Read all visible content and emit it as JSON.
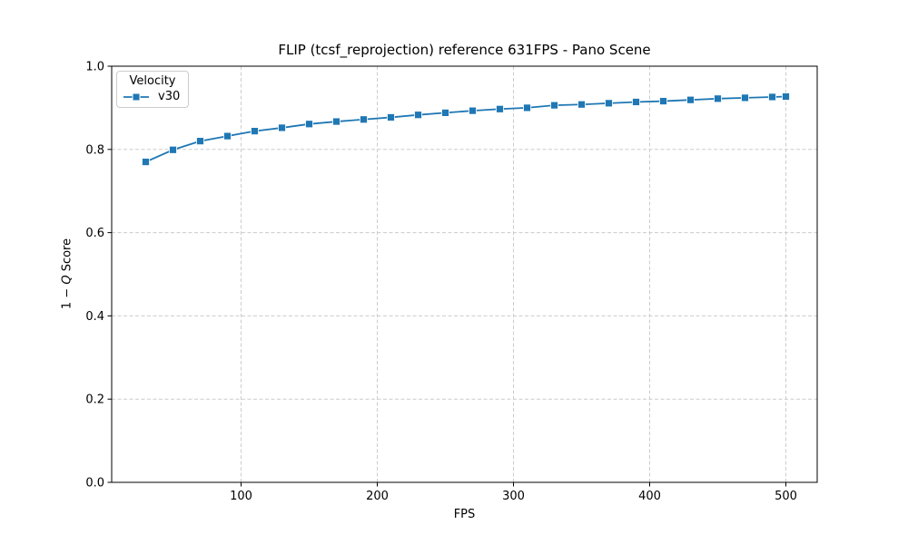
{
  "chart_data": {
    "type": "line",
    "title": "FLIP (tcsf_reprojection) reference 631FPS - Pano Scene",
    "xlabel": "FPS",
    "ylabel": "1 − Q Score",
    "ylabel_parts": {
      "prefix": "1 − ",
      "math": "Q",
      "suffix": " Score"
    },
    "xlim": [
      5,
      523
    ],
    "ylim": [
      0.0,
      1.0
    ],
    "xticks": [
      100,
      200,
      300,
      400,
      500
    ],
    "xtick_labels": [
      "100",
      "200",
      "300",
      "400",
      "500"
    ],
    "yticks": [
      0.0,
      0.2,
      0.4,
      0.6,
      0.8,
      1.0
    ],
    "ytick_labels": [
      "0.0",
      "0.2",
      "0.4",
      "0.6",
      "0.8",
      "1.0"
    ],
    "grid": true,
    "legend": {
      "title": "Velocity",
      "position": "upper left",
      "entries": [
        {
          "label": "v30",
          "color": "#1f77b4",
          "marker": "square"
        }
      ]
    },
    "series": [
      {
        "name": "v30",
        "color": "#1f77b4",
        "marker": "square",
        "x": [
          30,
          50,
          70,
          90,
          110,
          130,
          150,
          170,
          190,
          210,
          230,
          250,
          270,
          290,
          310,
          330,
          350,
          370,
          390,
          410,
          430,
          450,
          470,
          490,
          500
        ],
        "y": [
          0.77,
          0.799,
          0.82,
          0.832,
          0.844,
          0.852,
          0.861,
          0.867,
          0.872,
          0.877,
          0.883,
          0.888,
          0.893,
          0.897,
          0.9,
          0.906,
          0.908,
          0.911,
          0.914,
          0.916,
          0.919,
          0.922,
          0.924,
          0.926,
          0.927
        ]
      }
    ],
    "style": {
      "line_color": "#1f77b4",
      "marker_edge_color": "#ffffff",
      "grid_color": "#cccccc",
      "spine_color": "#000000",
      "background_color": "#ffffff"
    }
  }
}
